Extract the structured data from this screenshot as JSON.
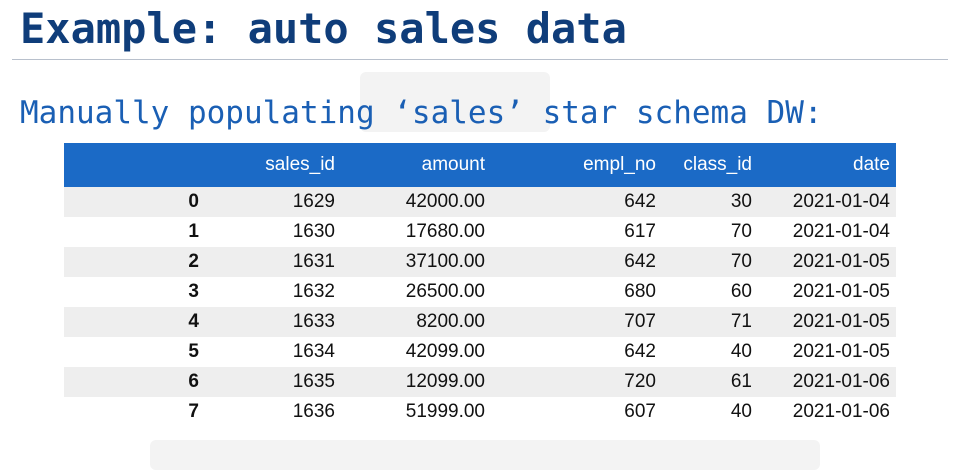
{
  "slide": {
    "title": "Example: auto sales data",
    "subtitle": "Manually populating ‘sales’ star schema DW:"
  },
  "table": {
    "columns": [
      "",
      "sales_id",
      "amount",
      "empl_no",
      "class_id",
      "date"
    ],
    "rows": [
      [
        "0",
        "1629",
        "42000.00",
        "642",
        "30",
        "2021-01-04"
      ],
      [
        "1",
        "1630",
        "17680.00",
        "617",
        "70",
        "2021-01-04"
      ],
      [
        "2",
        "1631",
        "37100.00",
        "642",
        "70",
        "2021-01-05"
      ],
      [
        "3",
        "1632",
        "26500.00",
        "680",
        "60",
        "2021-01-05"
      ],
      [
        "4",
        "1633",
        "8200.00",
        "707",
        "71",
        "2021-01-05"
      ],
      [
        "5",
        "1634",
        "42099.00",
        "642",
        "40",
        "2021-01-05"
      ],
      [
        "6",
        "1635",
        "12099.00",
        "720",
        "61",
        "2021-01-06"
      ],
      [
        "7",
        "1636",
        "51999.00",
        "607",
        "40",
        "2021-01-06"
      ]
    ]
  },
  "colors": {
    "title": "#0f3d7a",
    "subtitle": "#1a5fb4",
    "header_bg": "#1b6ac6",
    "stripe": "#eeeeee"
  }
}
